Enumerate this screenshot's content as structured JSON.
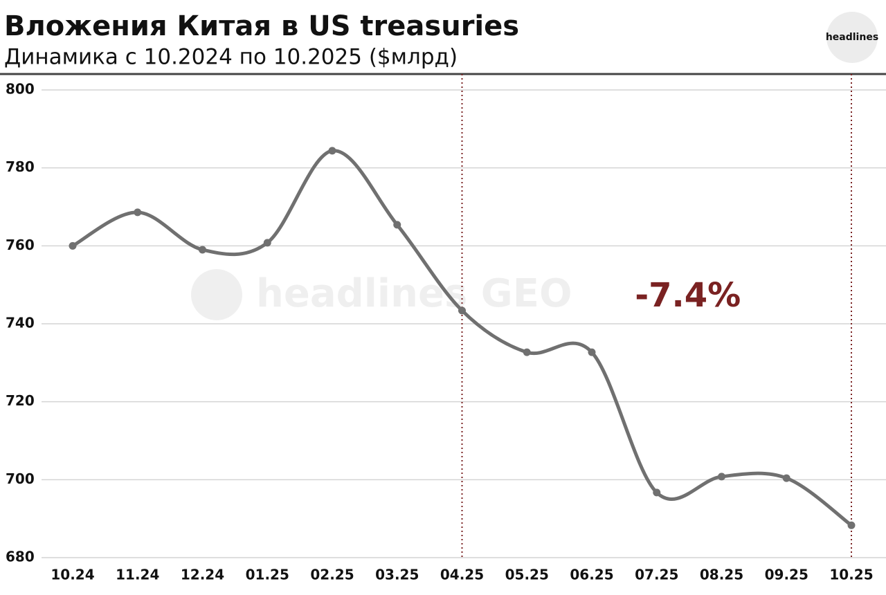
{
  "chart_data": {
    "type": "line",
    "title": "Вложения Китая в US treasuries",
    "subtitle": "Динамика с 10.2024 по 10.2025 ($млрд)",
    "brand": "headlines",
    "watermark": "headlines GEO",
    "categories": [
      "10.24",
      "11.24",
      "12.24",
      "01.25",
      "02.25",
      "03.25",
      "04.25",
      "05.25",
      "06.25",
      "07.25",
      "08.25",
      "09.25",
      "10.25"
    ],
    "series": [
      {
        "name": "Вложения Китая в US treasuries",
        "color": "#707070",
        "values": [
          760.0,
          768.6,
          759.0,
          760.8,
          784.4,
          765.4,
          743.4,
          732.7,
          732.7,
          696.7,
          700.8,
          700.4,
          688.3
        ]
      }
    ],
    "ylim": [
      680,
      800
    ],
    "yticks": [
      680,
      700,
      720,
      740,
      760,
      780,
      800
    ],
    "grid": true,
    "annotation": {
      "text": "-7.4%",
      "from": "04.25",
      "to": "10.25",
      "color": "#7a2222"
    }
  }
}
